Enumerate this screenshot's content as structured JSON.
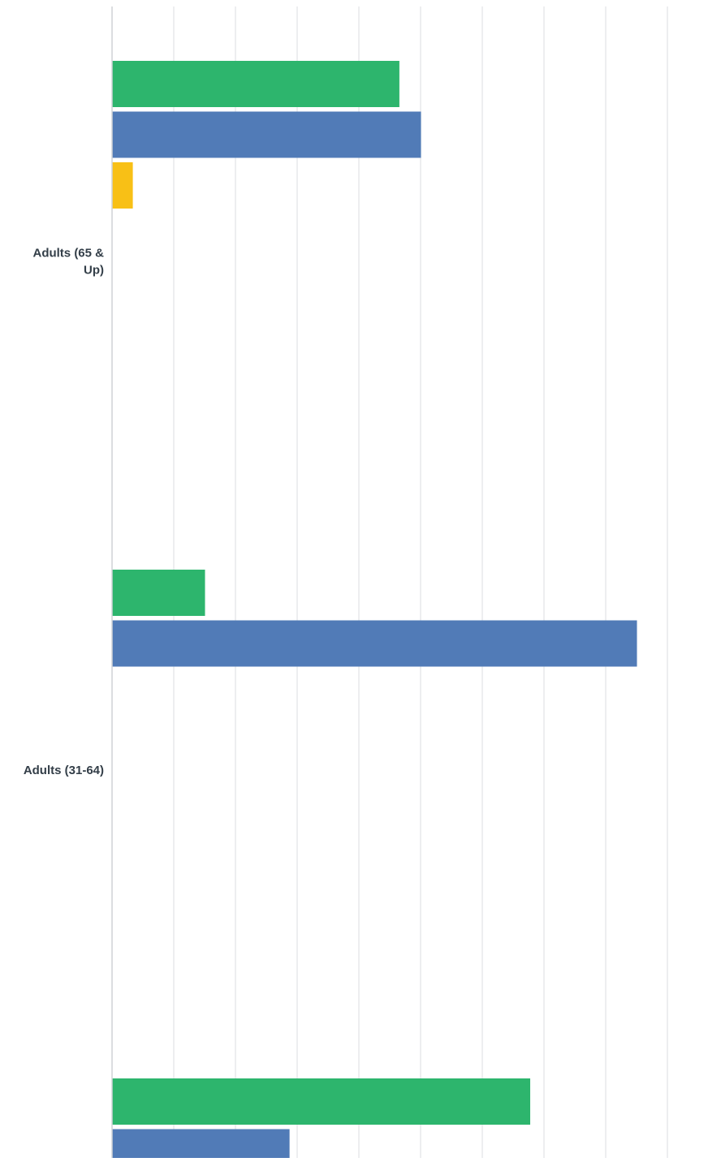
{
  "chart_data": {
    "type": "bar",
    "orientation": "horizontal",
    "categories": [
      [
        "Adults (65 &",
        "Up)"
      ],
      [
        "Adults (31-64)"
      ],
      []
    ],
    "series": [
      {
        "color": "#2db56d",
        "values": [
          4.65,
          1.5,
          6.77
        ]
      },
      {
        "color": "#517bb7",
        "values": [
          5.0,
          8.5,
          2.87
        ]
      },
      {
        "color": "#f8c016",
        "values": [
          0.33,
          0,
          null
        ]
      }
    ],
    "xlim": [
      0,
      9
    ],
    "grid": true,
    "legend": "none"
  }
}
